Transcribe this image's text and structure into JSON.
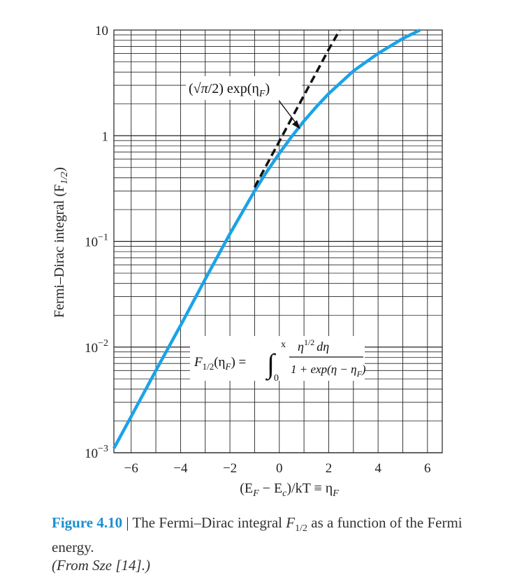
{
  "chart_data": {
    "type": "line",
    "ylabel": "Fermi–Dirac integral (F",
    "ylabel_sub": "1/2",
    "ylabel_close": ")",
    "xlabel": {
      "text1": "(E",
      "sub1": "F",
      "text2": " − E",
      "sub2": "c",
      "text3": ")/kT ≡ η",
      "sub3": "F"
    },
    "x_ticks": [
      "−6",
      "−4",
      "−2",
      "0",
      "2",
      "4",
      "6"
    ],
    "x_tick_values": [
      -6,
      -4,
      -2,
      0,
      2,
      4,
      6
    ],
    "y_ticks": [
      {
        "value": 10,
        "base": "10",
        "exp": ""
      },
      {
        "value": 1,
        "base": "1",
        "exp": ""
      },
      {
        "value": 0.1,
        "base": "10",
        "exp": "−1"
      },
      {
        "value": 0.01,
        "base": "10",
        "exp": "−2"
      },
      {
        "value": 0.001,
        "base": "10",
        "exp": "−3"
      }
    ],
    "xlim": [
      -6.7,
      6.6
    ],
    "ylim": [
      0.001,
      10
    ],
    "y_scale": "log",
    "grid": true,
    "series": [
      {
        "color": "#1aa3e8",
        "style": "solid",
        "x": [
          -6.7,
          -6,
          -5,
          -4,
          -3,
          -2,
          -1,
          -0.5,
          0,
          0.5,
          1,
          1.5,
          2,
          3,
          4,
          5,
          5.7
        ],
        "y": [
          0.0011,
          0.0022,
          0.006,
          0.016,
          0.044,
          0.118,
          0.3,
          0.46,
          0.68,
          0.98,
          1.38,
          1.88,
          2.5,
          4.1,
          6.0,
          8.3,
          10
        ]
      },
      {
        "color": "#111111",
        "style": "dashed",
        "x": [
          -1,
          -0.5,
          0,
          0.5,
          1,
          1.5,
          2,
          2.45
        ],
        "y": [
          0.326,
          0.537,
          0.886,
          1.46,
          2.41,
          3.97,
          6.55,
          10
        ]
      }
    ],
    "annotations": {
      "dashed_label": {
        "pre": "(√",
        "pi": "π",
        "post": "/2) exp(η",
        "sub": "F",
        "close": ")"
      },
      "formula": {
        "lhs": "F",
        "lhs_sub": "1/2",
        "lhs_arg": "(η",
        "lhs_arg_sub": "F",
        "lhs_close": ") =",
        "integral": "∫",
        "upper": "x",
        "lower": "0",
        "numerator": "η",
        "num_exp": "1/2",
        "num_tail": "dη",
        "denominator": "1 + exp(η − η",
        "den_sub": "F",
        "den_close": ")"
      }
    }
  },
  "caption": {
    "label": "Figure 4.10",
    "sep": " | ",
    "text1": "The Fermi–Dirac integral ",
    "F": "F",
    "F_sub": "1/2",
    "text2": " as a function of the Fermi energy.",
    "source": "(From Sze [14].)"
  }
}
